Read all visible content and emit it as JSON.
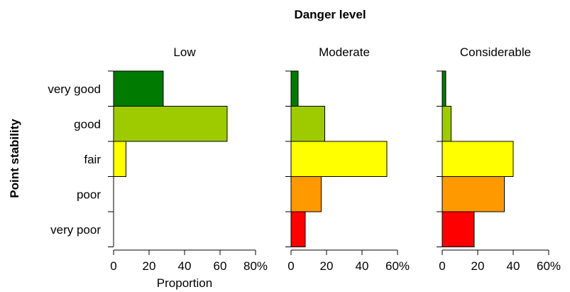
{
  "chart_data": {
    "type": "bar",
    "orientation": "horizontal",
    "title": "Danger level",
    "ylabel": "Point stability",
    "xlabel": "Proportion",
    "categories": [
      "very good",
      "good",
      "fair",
      "poor",
      "very poor"
    ],
    "colors": [
      "#007a00",
      "#9dcb00",
      "#ffff00",
      "#ff9900",
      "#ff0000"
    ],
    "panels": [
      {
        "title": "Low",
        "xlim": [
          0,
          80
        ],
        "ticks": [
          "0",
          "20",
          "40",
          "60",
          "80%"
        ],
        "values": [
          28,
          64,
          7,
          0,
          0
        ]
      },
      {
        "title": "Moderate",
        "xlim": [
          0,
          60
        ],
        "ticks": [
          "0",
          "20",
          "40",
          "60%"
        ],
        "values": [
          4,
          19,
          54,
          17,
          8
        ]
      },
      {
        "title": "Considerable",
        "xlim": [
          0,
          60
        ],
        "ticks": [
          "0",
          "20",
          "40",
          "60%"
        ],
        "values": [
          2,
          5,
          40,
          35,
          18
        ]
      }
    ]
  }
}
